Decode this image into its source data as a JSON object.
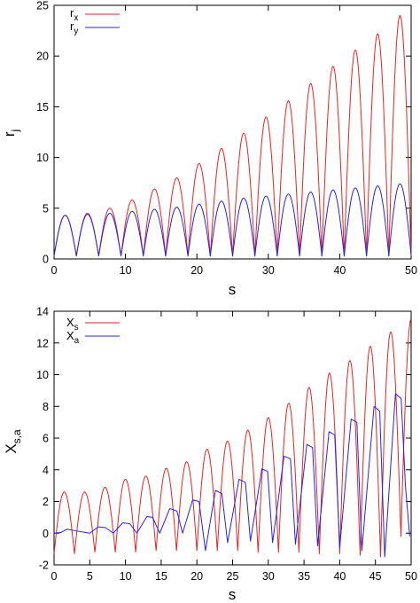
{
  "chart_data": [
    {
      "type": "line",
      "xlabel": "s",
      "ylabel": "r",
      "ylabel_sub": "j",
      "xlim": [
        0,
        50
      ],
      "ylim": [
        0,
        25
      ],
      "xticks": [
        0,
        10,
        20,
        30,
        40,
        50
      ],
      "yticks": [
        0,
        5,
        10,
        15,
        20,
        25
      ],
      "grid": false,
      "legend_placement": "top-left",
      "series": [
        {
          "name": "r",
          "name_sub": "x",
          "color": "#e0262b",
          "peaks": [
            4.3,
            4.5,
            5.0,
            5.8,
            6.9,
            8.0,
            9.4,
            10.9,
            12.4,
            14.0,
            15.6,
            17.3,
            19.0,
            20.6,
            22.2,
            24.0
          ],
          "troughs": [
            0.3,
            0.3,
            0.3,
            0.3,
            0.3,
            0.3,
            0.3,
            0.3,
            0.3,
            0.3,
            0.3,
            0.3,
            0.3,
            0.3,
            0.3,
            0.3
          ]
        },
        {
          "name": "r",
          "name_sub": "y",
          "color": "#2424e0",
          "peaks": [
            4.3,
            4.4,
            4.5,
            4.7,
            4.9,
            5.1,
            5.4,
            5.7,
            6.0,
            6.2,
            6.4,
            6.6,
            6.8,
            7.0,
            7.2,
            7.4
          ],
          "troughs": [
            0.3,
            0.3,
            0.3,
            0.3,
            0.3,
            0.3,
            0.3,
            0.3,
            0.3,
            0.3,
            0.3,
            0.3,
            0.3,
            0.3,
            0.3,
            0.3
          ]
        }
      ],
      "cycle": {
        "start": 0,
        "end": 50,
        "count": 16
      }
    },
    {
      "type": "line",
      "xlabel": "s",
      "ylabel": "X",
      "ylabel_sub": "s,a",
      "xlim": [
        0,
        50
      ],
      "ylim": [
        -2,
        14
      ],
      "xticks": [
        0,
        5,
        10,
        15,
        20,
        25,
        30,
        35,
        40,
        45,
        50
      ],
      "yticks": [
        -2,
        0,
        2,
        4,
        6,
        8,
        10,
        12,
        14
      ],
      "grid": false,
      "legend_placement": "top-left",
      "series": [
        {
          "name": "X",
          "name_sub": "s",
          "color": "#e0262b",
          "peaks": [
            2.6,
            2.6,
            2.9,
            3.4,
            3.6,
            4.1,
            4.5,
            5.3,
            5.8,
            6.5,
            7.3,
            8.2,
            9.2,
            10.1,
            10.9,
            11.8,
            12.7,
            13.5
          ],
          "troughs": [
            -1.3,
            -1.3,
            -1.2,
            -1.2,
            -1.2,
            -1.1,
            -1.1,
            -1.1,
            -1.1,
            -1.1,
            -1.2,
            -1.2,
            -1.2,
            -1.3,
            -1.3,
            -1.4,
            -1.5,
            -0.2
          ]
        },
        {
          "name": "X",
          "name_sub": "a",
          "color": "#2424e0",
          "values": [
            [
              0,
              0.0
            ],
            [
              1,
              0.05
            ],
            [
              1.8,
              0.25
            ],
            [
              3,
              0.15
            ],
            [
              5,
              0.0
            ],
            [
              6.2,
              0.4
            ],
            [
              7.2,
              0.35
            ],
            [
              8.3,
              0.0
            ],
            [
              9.6,
              0.65
            ],
            [
              10.6,
              0.6
            ],
            [
              11.6,
              0.0
            ],
            [
              13.0,
              1.05
            ],
            [
              13.8,
              1.0
            ],
            [
              14.8,
              0.0
            ],
            [
              16.2,
              1.55
            ],
            [
              17.2,
              1.4
            ],
            [
              18.0,
              0.0
            ],
            [
              19.4,
              2.1
            ],
            [
              20.3,
              2.0
            ],
            [
              21.2,
              -1.1
            ],
            [
              22.6,
              2.7
            ],
            [
              23.5,
              2.5
            ],
            [
              24.3,
              -0.6
            ],
            [
              25.9,
              3.4
            ],
            [
              26.8,
              3.2
            ],
            [
              27.5,
              -0.5
            ],
            [
              29.1,
              4.05
            ],
            [
              29.9,
              3.9
            ],
            [
              30.6,
              -0.6
            ],
            [
              32.2,
              4.85
            ],
            [
              33.1,
              4.7
            ],
            [
              33.8,
              -0.7
            ],
            [
              35.4,
              5.6
            ],
            [
              36.2,
              5.4
            ],
            [
              36.9,
              -0.8
            ],
            [
              38.5,
              6.4
            ],
            [
              39.3,
              6.2
            ],
            [
              40.0,
              -0.9
            ],
            [
              41.6,
              7.2
            ],
            [
              42.4,
              7.0
            ],
            [
              43.1,
              -1.1
            ],
            [
              44.8,
              8.0
            ],
            [
              45.6,
              7.7
            ],
            [
              46.3,
              -1.5
            ],
            [
              47.8,
              8.8
            ],
            [
              48.6,
              8.5
            ],
            [
              49.2,
              3.0
            ],
            [
              49.8,
              -0.2
            ]
          ]
        }
      ],
      "cycle": {
        "start": 0,
        "end": 50,
        "count": 17.5
      }
    }
  ]
}
